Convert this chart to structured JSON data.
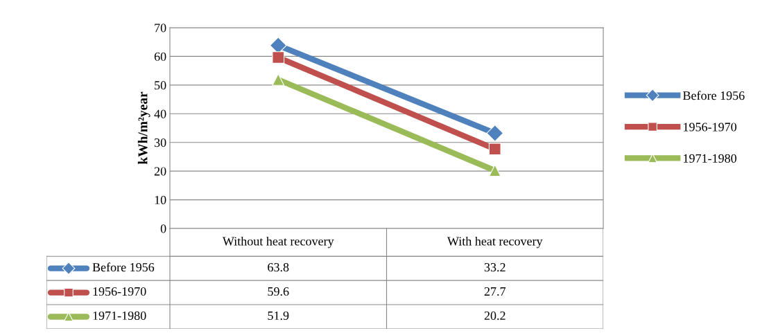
{
  "chart_data": {
    "type": "line",
    "ylabel": "kWh/m²year",
    "categories": [
      "Without heat recovery",
      "With heat recovery"
    ],
    "series": [
      {
        "name": "Before 1956",
        "color": "#4f81bd",
        "marker": "diamond",
        "values": [
          63.8,
          33.2
        ]
      },
      {
        "name": "1956-1970",
        "color": "#c0504d",
        "marker": "square",
        "values": [
          59.6,
          27.7
        ]
      },
      {
        "name": "1971-1980",
        "color": "#9bbb59",
        "marker": "triangle",
        "values": [
          51.9,
          20.2
        ]
      }
    ],
    "ylim": [
      0,
      70
    ],
    "yticks": [
      0,
      10,
      20,
      30,
      40,
      50,
      60,
      70
    ],
    "grid": "y",
    "legend": "right",
    "data_labels": true,
    "line_style": "solid"
  }
}
